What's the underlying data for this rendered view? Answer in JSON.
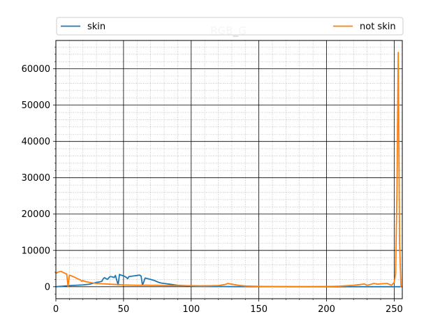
{
  "chart_data": {
    "type": "line",
    "title": "RGB_G",
    "xlabel": "",
    "ylabel": "",
    "xlim": [
      0,
      256
    ],
    "ylim": [
      -3300,
      67800
    ],
    "x_ticks": [
      0,
      50,
      100,
      150,
      200,
      250
    ],
    "y_ticks": [
      0,
      10000,
      20000,
      30000,
      40000,
      50000,
      60000
    ],
    "grid": "major and minor",
    "legend": "top, spanning width",
    "series": [
      {
        "name": "skin",
        "color": "#1f77b4",
        "x": [
          0,
          5,
          10,
          15,
          20,
          25,
          28,
          30,
          32,
          34,
          35,
          36,
          38,
          40,
          42,
          43,
          44,
          46,
          47,
          48,
          50,
          52,
          53,
          54,
          56,
          58,
          60,
          62,
          63,
          64,
          66,
          68,
          70,
          72,
          73,
          74,
          76,
          78,
          80,
          82,
          84,
          86,
          88,
          90,
          95,
          100,
          105,
          110,
          120,
          130,
          150,
          180,
          200,
          220,
          250,
          255
        ],
        "y": [
          0,
          150,
          300,
          400,
          500,
          700,
          1000,
          1200,
          1300,
          1500,
          2200,
          2500,
          2000,
          2800,
          2700,
          2500,
          3100,
          500,
          3400,
          3200,
          3000,
          2600,
          2200,
          2800,
          2900,
          3000,
          3100,
          3200,
          2900,
          400,
          2400,
          2200,
          2000,
          1800,
          1700,
          1500,
          1200,
          1000,
          900,
          800,
          700,
          600,
          500,
          400,
          300,
          200,
          150,
          100,
          60,
          30,
          10,
          5,
          0,
          0,
          0,
          0
        ]
      },
      {
        "name": "not skin",
        "color": "#ff7f0e",
        "x": [
          0,
          2,
          4,
          6,
          8,
          9,
          10,
          12,
          14,
          16,
          18,
          19,
          20,
          22,
          25,
          28,
          30,
          35,
          40,
          45,
          50,
          55,
          60,
          65,
          70,
          75,
          80,
          85,
          90,
          95,
          100,
          105,
          110,
          115,
          120,
          125,
          127,
          130,
          135,
          140,
          150,
          160,
          180,
          200,
          210,
          220,
          225,
          228,
          230,
          235,
          238,
          240,
          245,
          248,
          250,
          251,
          252,
          253,
          254,
          255
        ],
        "y": [
          3700,
          4100,
          4200,
          3800,
          3500,
          100,
          3200,
          2900,
          2600,
          2200,
          1900,
          1500,
          1700,
          1400,
          1200,
          1000,
          900,
          800,
          700,
          600,
          500,
          450,
          400,
          420,
          400,
          380,
          350,
          320,
          300,
          290,
          270,
          250,
          240,
          280,
          320,
          600,
          900,
          700,
          400,
          200,
          100,
          50,
          30,
          60,
          150,
          400,
          600,
          750,
          400,
          900,
          700,
          800,
          900,
          400,
          1200,
          3500,
          25000,
          64500,
          12000,
          0
        ]
      }
    ]
  }
}
